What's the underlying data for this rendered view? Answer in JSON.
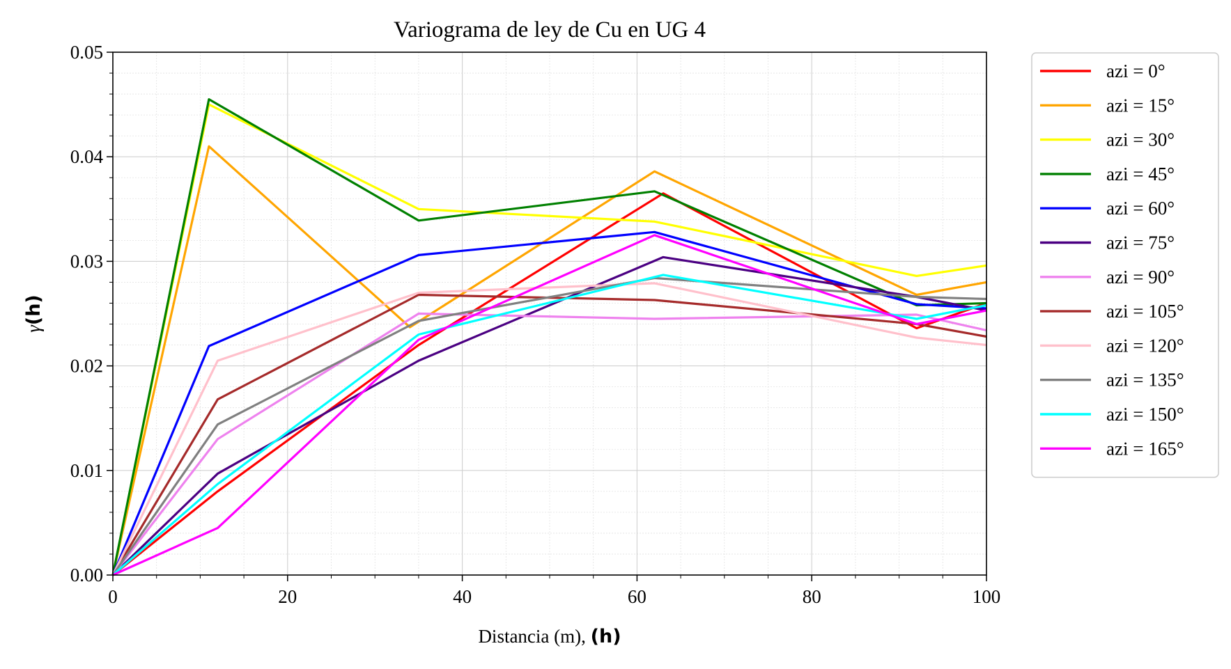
{
  "chart_data": {
    "type": "line",
    "title": "Variograma de ley de Cu en UG 4",
    "xlabel": "Distancia (m), ",
    "xlabel_bold": "(h)",
    "ylabel_prefix": "γ",
    "ylabel_bold": "(h)",
    "xlim": [
      0,
      100
    ],
    "ylim": [
      0,
      0.05
    ],
    "xticks": [
      "0",
      "20",
      "40",
      "60",
      "80",
      "100"
    ],
    "yticks": [
      "0.00",
      "0.01",
      "0.02",
      "0.03",
      "0.04",
      "0.05"
    ],
    "grid": true,
    "legend_position": "outside-right",
    "series": [
      {
        "name": "azi = 0°",
        "color": "#ff0000",
        "x": [
          0,
          12,
          35,
          63,
          92,
          100
        ],
        "y": [
          0,
          0.008,
          0.022,
          0.0365,
          0.0236,
          0.026
        ]
      },
      {
        "name": "azi = 15°",
        "color": "#ffa500",
        "x": [
          0,
          11,
          34,
          62,
          92,
          100
        ],
        "y": [
          0,
          0.041,
          0.0237,
          0.0386,
          0.0268,
          0.028
        ]
      },
      {
        "name": "azi = 30°",
        "color": "#ffff00",
        "x": [
          0,
          11,
          35,
          62,
          92,
          100
        ],
        "y": [
          0,
          0.045,
          0.035,
          0.0338,
          0.0286,
          0.0296
        ]
      },
      {
        "name": "azi = 45°",
        "color": "#008000",
        "x": [
          0,
          11,
          35,
          62,
          92,
          100
        ],
        "y": [
          0,
          0.0455,
          0.0339,
          0.0367,
          0.0258,
          0.026
        ]
      },
      {
        "name": "azi = 60°",
        "color": "#0000ff",
        "x": [
          0,
          11,
          35,
          62,
          92,
          100
        ],
        "y": [
          0,
          0.0219,
          0.0306,
          0.0328,
          0.0259,
          0.0255
        ]
      },
      {
        "name": "azi = 75°",
        "color": "#4b0082",
        "x": [
          0,
          12,
          35,
          63,
          92,
          100
        ],
        "y": [
          0,
          0.0097,
          0.0205,
          0.0304,
          0.0266,
          0.0253
        ]
      },
      {
        "name": "azi = 90°",
        "color": "#ee82ee",
        "x": [
          0,
          12,
          35,
          62,
          92,
          100
        ],
        "y": [
          0,
          0.013,
          0.025,
          0.0245,
          0.0249,
          0.0234
        ]
      },
      {
        "name": "azi = 105°",
        "color": "#a52a2a",
        "x": [
          0,
          12,
          35,
          62,
          92,
          100
        ],
        "y": [
          0,
          0.0168,
          0.0268,
          0.0263,
          0.024,
          0.0228
        ]
      },
      {
        "name": "azi = 120°",
        "color": "#ffc0cb",
        "x": [
          0,
          12,
          35,
          62,
          92,
          100
        ],
        "y": [
          0,
          0.0205,
          0.027,
          0.0279,
          0.0227,
          0.022
        ]
      },
      {
        "name": "azi = 135°",
        "color": "#808080",
        "x": [
          0,
          12,
          35,
          62,
          92,
          100
        ],
        "y": [
          0,
          0.0144,
          0.0243,
          0.0284,
          0.0266,
          0.0264
        ]
      },
      {
        "name": "azi = 150°",
        "color": "#00ffff",
        "x": [
          0,
          12,
          35,
          63,
          92,
          100
        ],
        "y": [
          0,
          0.0087,
          0.023,
          0.0287,
          0.0245,
          0.0258
        ]
      },
      {
        "name": "azi = 165°",
        "color": "#ff00ff",
        "x": [
          0,
          12,
          35,
          62,
          92,
          100
        ],
        "y": [
          0,
          0.0045,
          0.0225,
          0.0325,
          0.024,
          0.0253
        ]
      }
    ]
  }
}
